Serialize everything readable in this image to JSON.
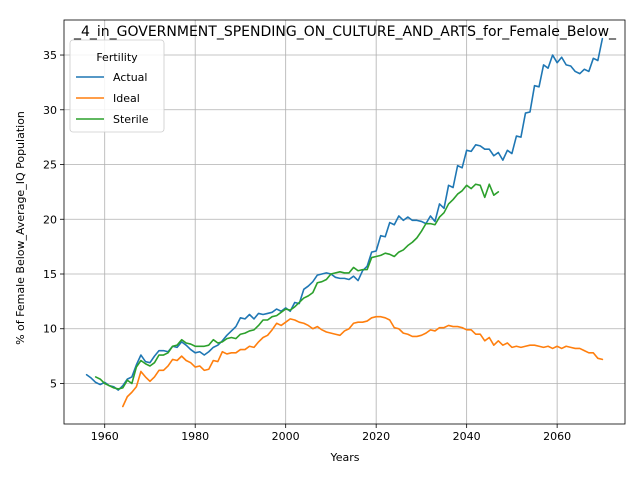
{
  "chart_data": {
    "type": "line",
    "title": "_4_in_GOVERNMENT_SPENDING_ON_CULTURE_AND_ARTS_for_Female_Below_",
    "xlabel": "Years",
    "ylabel": "% of Female Below_Average_IQ Population",
    "xlim": [
      1951,
      2075
    ],
    "ylim": [
      1.3,
      38.2
    ],
    "xticks": [
      1960,
      1980,
      2000,
      2020,
      2040,
      2060
    ],
    "yticks": [
      5,
      10,
      15,
      20,
      25,
      30,
      35
    ],
    "grid": true,
    "legend": {
      "title": "Fertility",
      "placement": "upper left"
    },
    "series": [
      {
        "name": "Actual",
        "color": "#1f77b4",
        "x": [
          1956,
          1957,
          1958,
          1959,
          1960,
          1961,
          1962,
          1963,
          1964,
          1965,
          1966,
          1967,
          1968,
          1969,
          1970,
          1971,
          1972,
          1973,
          1974,
          1975,
          1976,
          1977,
          1978,
          1979,
          1980,
          1981,
          1982,
          1983,
          1984,
          1985,
          1986,
          1987,
          1988,
          1989,
          1990,
          1991,
          1992,
          1993,
          1994,
          1995,
          1996,
          1997,
          1998,
          1999,
          2000,
          2001,
          2002,
          2003,
          2004,
          2005,
          2006,
          2007,
          2008,
          2009,
          2010,
          2011,
          2012,
          2013,
          2014,
          2015,
          2016,
          2017,
          2018,
          2019,
          2020,
          2021,
          2022,
          2023,
          2024,
          2025,
          2026,
          2027,
          2028,
          2029,
          2030,
          2031,
          2032,
          2033,
          2034,
          2035,
          2036,
          2037,
          2038,
          2039,
          2040,
          2041,
          2042,
          2043,
          2044,
          2045,
          2046,
          2047,
          2048,
          2049,
          2050,
          2051,
          2052,
          2053,
          2054,
          2055,
          2056,
          2057,
          2058,
          2059,
          2060,
          2061,
          2062,
          2063,
          2064,
          2065,
          2066,
          2067,
          2068,
          2069,
          2070
        ],
        "values": [
          5.8,
          5.5,
          5.1,
          4.9,
          5.1,
          4.8,
          4.7,
          4.4,
          4.8,
          5.4,
          5.6,
          6.7,
          7.6,
          7.0,
          6.9,
          7.5,
          8.0,
          8.0,
          7.9,
          8.4,
          8.3,
          8.8,
          8.5,
          8.1,
          7.8,
          7.9,
          7.6,
          7.9,
          8.3,
          8.5,
          8.9,
          9.4,
          9.8,
          10.2,
          11.0,
          10.9,
          11.3,
          10.9,
          11.4,
          11.3,
          11.4,
          11.5,
          11.8,
          11.6,
          11.9,
          11.6,
          12.4,
          12.3,
          13.6,
          13.9,
          14.3,
          14.9,
          15.0,
          15.1,
          15.0,
          14.7,
          14.6,
          14.6,
          14.5,
          14.8,
          14.4,
          15.3,
          15.7,
          17.0,
          17.1,
          18.5,
          18.4,
          19.7,
          19.5,
          20.3,
          19.9,
          20.2,
          19.9,
          19.9,
          19.8,
          19.6,
          20.3,
          19.8,
          21.4,
          21.0,
          23.1,
          22.9,
          24.9,
          24.7,
          26.3,
          26.2,
          26.8,
          26.7,
          26.4,
          26.4,
          25.8,
          26.1,
          25.4,
          26.3,
          26.0,
          27.6,
          27.5,
          29.7,
          29.8,
          32.2,
          32.1,
          34.1,
          33.8,
          35.0,
          34.3,
          34.8,
          34.1,
          34.0,
          33.5,
          33.3,
          33.7,
          33.5,
          34.7,
          34.5,
          36.5
        ]
      },
      {
        "name": "Ideal",
        "color": "#ff7f0e",
        "x": [
          1964,
          1965,
          1966,
          1967,
          1968,
          1969,
          1970,
          1971,
          1972,
          1973,
          1974,
          1975,
          1976,
          1977,
          1978,
          1979,
          1980,
          1981,
          1982,
          1983,
          1984,
          1985,
          1986,
          1987,
          1988,
          1989,
          1990,
          1991,
          1992,
          1993,
          1994,
          1995,
          1996,
          1997,
          1998,
          1999,
          2000,
          2001,
          2002,
          2003,
          2004,
          2005,
          2006,
          2007,
          2008,
          2009,
          2010,
          2011,
          2012,
          2013,
          2014,
          2015,
          2016,
          2017,
          2018,
          2019,
          2020,
          2021,
          2022,
          2023,
          2024,
          2025,
          2026,
          2027,
          2028,
          2029,
          2030,
          2031,
          2032,
          2033,
          2034,
          2035,
          2036,
          2037,
          2038,
          2039,
          2040,
          2041,
          2042,
          2043,
          2044,
          2045,
          2046,
          2047,
          2048,
          2049,
          2050,
          2051,
          2052,
          2053,
          2054,
          2055,
          2056,
          2057,
          2058,
          2059,
          2060,
          2061,
          2062,
          2063,
          2064,
          2065,
          2066,
          2067,
          2068,
          2069,
          2070
        ],
        "values": [
          2.9,
          3.8,
          4.2,
          4.7,
          6.1,
          5.6,
          5.2,
          5.6,
          6.2,
          6.2,
          6.6,
          7.2,
          7.1,
          7.5,
          7.1,
          6.9,
          6.5,
          6.6,
          6.2,
          6.3,
          7.1,
          7.0,
          7.9,
          7.7,
          7.8,
          7.8,
          8.1,
          8.1,
          8.4,
          8.3,
          8.8,
          9.2,
          9.4,
          9.9,
          10.5,
          10.3,
          10.6,
          10.9,
          10.8,
          10.6,
          10.5,
          10.3,
          10.0,
          10.2,
          9.9,
          9.7,
          9.6,
          9.5,
          9.4,
          9.8,
          10.0,
          10.5,
          10.6,
          10.6,
          10.7,
          11.0,
          11.1,
          11.1,
          11.0,
          10.8,
          10.1,
          10.0,
          9.6,
          9.5,
          9.3,
          9.3,
          9.4,
          9.6,
          9.9,
          9.8,
          10.1,
          10.1,
          10.3,
          10.2,
          10.2,
          10.1,
          9.9,
          9.9,
          9.5,
          9.5,
          8.9,
          9.2,
          8.5,
          8.9,
          8.5,
          8.7,
          8.3,
          8.4,
          8.3,
          8.4,
          8.5,
          8.5,
          8.4,
          8.3,
          8.4,
          8.2,
          8.4,
          8.2,
          8.4,
          8.3,
          8.2,
          8.2,
          8.0,
          7.8,
          7.8,
          7.3,
          7.2
        ]
      },
      {
        "name": "Sterile",
        "color": "#2ca02c",
        "x": [
          1958,
          1959,
          1960,
          1961,
          1962,
          1963,
          1964,
          1965,
          1966,
          1967,
          1968,
          1969,
          1970,
          1971,
          1972,
          1973,
          1974,
          1975,
          1976,
          1977,
          1978,
          1979,
          1980,
          1981,
          1982,
          1983,
          1984,
          1985,
          1986,
          1987,
          1988,
          1989,
          1990,
          1991,
          1992,
          1993,
          1994,
          1995,
          1996,
          1997,
          1998,
          1999,
          2000,
          2001,
          2002,
          2003,
          2004,
          2005,
          2006,
          2007,
          2008,
          2009,
          2010,
          2011,
          2012,
          2013,
          2014,
          2015,
          2016,
          2017,
          2018,
          2019,
          2020,
          2021,
          2022,
          2023,
          2024,
          2025,
          2026,
          2027,
          2028,
          2029,
          2030,
          2031,
          2032,
          2033,
          2034,
          2035,
          2036,
          2037,
          2038,
          2039,
          2040,
          2041,
          2042,
          2043,
          2044,
          2045,
          2046,
          2047
        ],
        "values": [
          5.6,
          5.4,
          5.0,
          4.8,
          4.6,
          4.5,
          4.6,
          5.3,
          5.0,
          6.5,
          7.1,
          6.8,
          6.6,
          6.9,
          7.6,
          7.6,
          7.8,
          8.4,
          8.5,
          9.0,
          8.7,
          8.6,
          8.4,
          8.4,
          8.4,
          8.5,
          9.0,
          8.7,
          8.8,
          9.1,
          9.2,
          9.1,
          9.5,
          9.6,
          9.8,
          9.9,
          10.3,
          10.8,
          10.8,
          11.1,
          11.2,
          11.5,
          11.8,
          11.7,
          12.0,
          12.4,
          12.8,
          13.0,
          13.3,
          14.2,
          14.3,
          14.5,
          15.0,
          15.1,
          15.2,
          15.1,
          15.1,
          15.6,
          15.3,
          15.4,
          15.4,
          16.5,
          16.6,
          16.7,
          16.9,
          16.8,
          16.6,
          17.0,
          17.2,
          17.6,
          17.9,
          18.3,
          18.9,
          19.6,
          19.6,
          19.5,
          20.2,
          20.6,
          21.4,
          21.8,
          22.3,
          22.6,
          23.1,
          22.8,
          23.2,
          23.1,
          22.0,
          23.2,
          22.2,
          22.5
        ]
      }
    ]
  }
}
